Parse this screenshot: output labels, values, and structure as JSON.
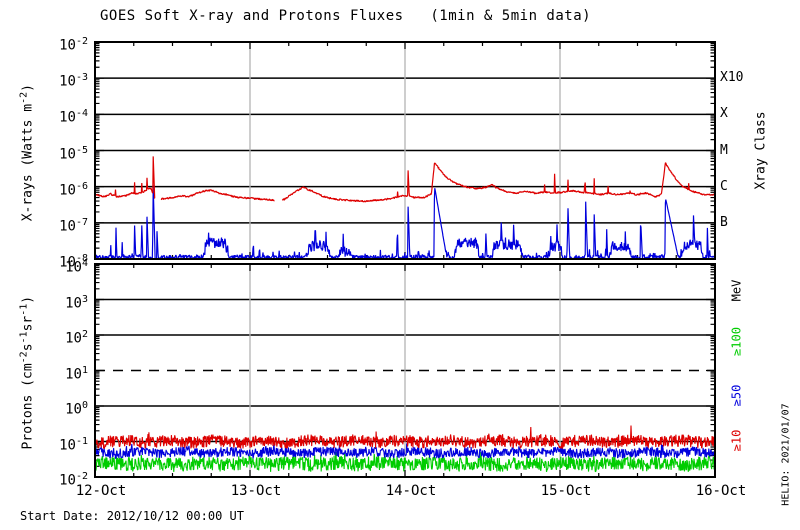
{
  "title": "GOES Soft X-ray and Protons Fluxes   (1min & 5min data)",
  "footer": {
    "start_date": "Start Date: 2012/10/12 00:00 UT"
  },
  "watermark": "HELIO: 2021/01/07",
  "colors": {
    "red": "#dd0000",
    "blue": "#0000dd",
    "green": "#00cc00",
    "grid": "#000000",
    "day_line": "#b3b3b3",
    "frame": "#000000"
  },
  "chart_data": {
    "type": "line",
    "title": "GOES Soft X-ray and Protons Fluxes   (1min & 5min data)",
    "x_axis": {
      "tick_labels": [
        "12-Oct",
        "13-Oct",
        "14-Oct",
        "15-Oct",
        "16-Oct"
      ],
      "range_days": [
        0,
        4
      ],
      "minor_tick_hours": 6,
      "start_date": "2012/10/12 00:00 UT"
    },
    "layout": {
      "plot_x": [
        95,
        715
      ],
      "panel1_y": [
        42,
        259
      ],
      "panel2_y": [
        264,
        477
      ],
      "ytick_left": 30,
      "ytick_width": 58,
      "rtick_x": 720,
      "xlabel_y": 483
    },
    "panels": [
      {
        "id": "xray",
        "ylabel_segments": [
          {
            "t": "X-rays (Watts m"
          },
          {
            "s": "-2"
          },
          {
            "t": ")"
          }
        ],
        "y_log_range": [
          -8,
          -2
        ],
        "tick_exponents": [
          -2,
          -3,
          -4,
          -5,
          -6,
          -7,
          -8
        ],
        "gridline_exponents": [
          -3,
          -4,
          -5,
          -6,
          -7
        ],
        "right_tick_labels": [
          {
            "text": "X10",
            "exp": -3
          },
          {
            "text": "X",
            "exp": -4
          },
          {
            "text": "M",
            "exp": -5
          },
          {
            "text": "C",
            "exp": -6
          },
          {
            "text": "B",
            "exp": -7
          }
        ],
        "right_axis_label": "Xray Class",
        "series": [
          {
            "name": "xray-short-0.5-4A",
            "color": "#0000dd",
            "style": "baseline-spikes",
            "baseline_log": -7.95,
            "noise": 0.06,
            "bumps": [
              [
                0.7,
                0.86,
                -7.55
              ],
              [
                1.36,
                1.52,
                -7.65
              ],
              [
                1.56,
                1.66,
                -7.8
              ],
              [
                2.32,
                2.48,
                -7.55
              ],
              [
                2.56,
                2.76,
                -7.6
              ],
              [
                2.92,
                3.02,
                -7.65
              ],
              [
                3.32,
                3.46,
                -7.65
              ],
              [
                3.78,
                3.92,
                -7.6
              ]
            ],
            "spikes": [
              [
                0.1,
                -7.35,
                0.006
              ],
              [
                0.135,
                -7.05,
                0.006
              ],
              [
                0.175,
                -7.45,
                0.006
              ],
              [
                0.255,
                -7.0,
                0.008
              ],
              [
                0.3,
                -6.85,
                0.008
              ],
              [
                0.335,
                -6.75,
                0.008
              ],
              [
                0.375,
                -5.85,
                0.006
              ],
              [
                0.4,
                -7.2,
                0.01
              ],
              [
                1.02,
                -7.25,
                0.006
              ],
              [
                1.06,
                -7.35,
                0.006
              ],
              [
                1.42,
                -6.95,
                0.01
              ],
              [
                1.49,
                -7.2,
                0.008
              ],
              [
                1.6,
                -7.15,
                0.008
              ],
              [
                1.95,
                -6.95,
                0.006
              ],
              [
                2.02,
                -6.55,
                0.008
              ],
              [
                2.19,
                -5.98,
                0.04
              ],
              [
                2.52,
                -7.1,
                0.01
              ],
              [
                2.62,
                -6.95,
                0.012
              ],
              [
                2.7,
                -7.0,
                0.01
              ],
              [
                2.98,
                -6.95,
                0.008
              ],
              [
                3.05,
                -6.4,
                0.008
              ],
              [
                3.165,
                -6.35,
                0.008
              ],
              [
                3.22,
                -6.65,
                0.008
              ],
              [
                3.3,
                -7.05,
                0.008
              ],
              [
                3.42,
                -7.1,
                0.008
              ],
              [
                3.52,
                -6.85,
                0.01
              ],
              [
                3.68,
                -6.3,
                0.05
              ],
              [
                3.86,
                -6.65,
                0.01
              ],
              [
                3.95,
                -7.05,
                0.008
              ]
            ],
            "clip_floor": -8.0
          },
          {
            "name": "xray-long-1-8A",
            "color": "#dd0000",
            "style": "control-points",
            "noise": 0.025,
            "control_points": [
              [
                0.0,
                -6.22
              ],
              [
                0.06,
                -6.28
              ],
              [
                0.1,
                -6.2
              ],
              [
                0.14,
                -6.28
              ],
              [
                0.2,
                -6.25
              ],
              [
                0.24,
                -6.18
              ],
              [
                0.28,
                -6.2
              ],
              [
                0.32,
                -6.12
              ],
              [
                0.36,
                -6.05
              ],
              [
                0.385,
                -6.3
              ],
              [
                0.42,
                -6.35
              ],
              [
                0.5,
                -6.3
              ],
              [
                0.56,
                -6.25
              ],
              [
                0.6,
                -6.28
              ],
              [
                0.65,
                -6.2
              ],
              [
                0.7,
                -6.12
              ],
              [
                0.75,
                -6.1
              ],
              [
                0.8,
                -6.18
              ],
              [
                0.85,
                -6.22
              ],
              [
                0.92,
                -6.3
              ],
              [
                1.0,
                -6.32
              ],
              [
                1.08,
                -6.35
              ],
              [
                1.16,
                -6.38
              ],
              [
                1.22,
                -6.35
              ],
              [
                1.28,
                -6.18
              ],
              [
                1.34,
                -6.02
              ],
              [
                1.4,
                -6.12
              ],
              [
                1.48,
                -6.28
              ],
              [
                1.56,
                -6.35
              ],
              [
                1.64,
                -6.38
              ],
              [
                1.72,
                -6.4
              ],
              [
                1.8,
                -6.38
              ],
              [
                1.88,
                -6.35
              ],
              [
                1.94,
                -6.3
              ],
              [
                2.0,
                -6.25
              ],
              [
                2.06,
                -6.3
              ],
              [
                2.12,
                -6.3
              ],
              [
                2.17,
                -6.2
              ],
              [
                2.19,
                -5.35
              ],
              [
                2.22,
                -5.5
              ],
              [
                2.26,
                -5.72
              ],
              [
                2.32,
                -5.9
              ],
              [
                2.4,
                -6.02
              ],
              [
                2.46,
                -6.05
              ],
              [
                2.52,
                -6.02
              ],
              [
                2.56,
                -5.95
              ],
              [
                2.6,
                -6.05
              ],
              [
                2.66,
                -6.15
              ],
              [
                2.72,
                -6.18
              ],
              [
                2.78,
                -6.12
              ],
              [
                2.84,
                -6.18
              ],
              [
                2.9,
                -6.15
              ],
              [
                2.96,
                -6.18
              ],
              [
                3.02,
                -6.15
              ],
              [
                3.08,
                -6.12
              ],
              [
                3.14,
                -6.15
              ],
              [
                3.2,
                -6.18
              ],
              [
                3.26,
                -6.22
              ],
              [
                3.32,
                -6.18
              ],
              [
                3.38,
                -6.22
              ],
              [
                3.44,
                -6.18
              ],
              [
                3.5,
                -6.22
              ],
              [
                3.56,
                -6.18
              ],
              [
                3.62,
                -6.28
              ],
              [
                3.655,
                -6.2
              ],
              [
                3.68,
                -5.35
              ],
              [
                3.71,
                -5.55
              ],
              [
                3.75,
                -5.8
              ],
              [
                3.79,
                -5.98
              ],
              [
                3.83,
                -6.08
              ],
              [
                3.87,
                -6.15
              ],
              [
                3.91,
                -6.2
              ],
              [
                3.95,
                -6.22
              ],
              [
                4.0,
                -6.22
              ]
            ],
            "spikes": [
              [
                0.13,
                -5.88,
                0.012
              ],
              [
                0.255,
                -5.82,
                0.01
              ],
              [
                0.3,
                -5.75,
                0.012
              ],
              [
                0.335,
                -5.7,
                0.012
              ],
              [
                0.375,
                -5.08,
                0.008
              ],
              [
                1.95,
                -5.85,
                0.008
              ],
              [
                2.02,
                -5.55,
                0.01
              ],
              [
                2.555,
                -5.92,
                0.015
              ],
              [
                2.9,
                -5.85,
                0.008
              ],
              [
                2.965,
                -5.6,
                0.008
              ],
              [
                3.05,
                -5.65,
                0.01
              ],
              [
                3.16,
                -5.58,
                0.008
              ],
              [
                3.22,
                -5.65,
                0.008
              ],
              [
                3.31,
                -5.95,
                0.008
              ],
              [
                3.45,
                -5.92,
                0.01
              ],
              [
                3.52,
                -5.95,
                0.008
              ],
              [
                3.83,
                -5.85,
                0.012
              ]
            ],
            "gaps": [
              [
                0.388,
                0.425
              ],
              [
                1.16,
                1.205
              ]
            ]
          }
        ]
      },
      {
        "id": "protons",
        "ylabel_segments": [
          {
            "t": "Protons (cm"
          },
          {
            "s": "-2"
          },
          {
            "t": "s"
          },
          {
            "s": "-1"
          },
          {
            "t": "sr"
          },
          {
            "s": "-1"
          },
          {
            "t": ")"
          }
        ],
        "y_log_range": [
          -2,
          4
        ],
        "tick_exponents": [
          4,
          3,
          2,
          1,
          0,
          -1,
          -2
        ],
        "gridlines_solid": [
          3,
          2,
          0,
          -1
        ],
        "gridlines_dashed": [
          1
        ],
        "right_labels": [
          {
            "text": "MeV",
            "color": "#000000",
            "center_log": 3.24
          },
          {
            "text": "≥100",
            "color": "#00cc00",
            "center_log": 1.8
          },
          {
            "text": "≥50",
            "color": "#0000dd",
            "center_log": 0.28
          },
          {
            "text": "≥10",
            "color": "#dd0000",
            "center_log": -0.99
          }
        ],
        "series": [
          {
            "name": "protons-ge100MeV",
            "color": "#00cc00",
            "style": "noise-band",
            "mean_log": -1.63,
            "amp": 0.2,
            "pop_prob": 0.05,
            "pop_amp": 0.15,
            "clip_floor": -2.0
          },
          {
            "name": "protons-ge50MeV",
            "color": "#0000dd",
            "style": "noise-band",
            "mean_log": -1.31,
            "amp": 0.14,
            "pop_prob": 0.04,
            "pop_amp": 0.15,
            "clip_floor": -2.0
          },
          {
            "name": "protons-ge10MeV",
            "color": "#dd0000",
            "style": "noise-band",
            "mean_log": -1.0,
            "amp": 0.17,
            "pop_prob": 0.03,
            "pop_amp": 0.28,
            "clip_floor": -2.0
          }
        ]
      }
    ]
  }
}
